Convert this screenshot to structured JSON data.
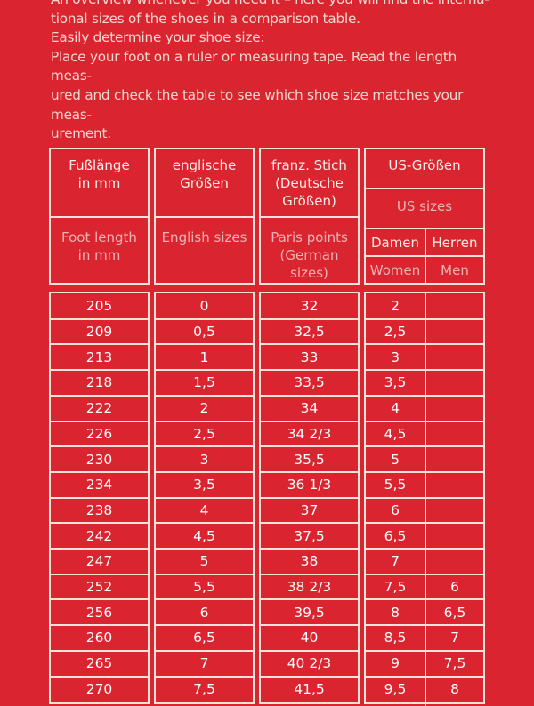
{
  "intro": {
    "lines": [
      "An overview whenever you need it – here you will find the interna-",
      "tional sizes of the shoes in a comparison table.",
      "Easily determine your shoe size:",
      "Place your foot on a ruler or measuring tape. Read the length meas-",
      "ured and check the table to see which shoe size matches your meas-",
      "urement."
    ]
  },
  "table": {
    "headers": {
      "foot_length": {
        "de": "Fußlänge\nin mm",
        "en": "Foot length\nin mm"
      },
      "english": {
        "de": "englische\nGrößen",
        "en": "English sizes"
      },
      "french": {
        "de": "franz. Stich\n(Deutsche\nGrößen)",
        "en": "Paris points\n(German sizes)"
      },
      "us": {
        "de": "US-Größen",
        "en": "US sizes",
        "women_de": "Damen",
        "men_de": "Herren",
        "women_en": "Women",
        "men_en": "Men"
      }
    },
    "rows": [
      [
        "205",
        "0",
        "32",
        "2",
        ""
      ],
      [
        "209",
        "0,5",
        "32,5",
        "2,5",
        ""
      ],
      [
        "213",
        "1",
        "33",
        "3",
        ""
      ],
      [
        "218",
        "1,5",
        "33,5",
        "3,5",
        ""
      ],
      [
        "222",
        "2",
        "34",
        "4",
        ""
      ],
      [
        "226",
        "2,5",
        "34 2/3",
        "4,5",
        ""
      ],
      [
        "230",
        "3",
        "35,5",
        "5",
        ""
      ],
      [
        "234",
        "3,5",
        "36 1/3",
        "5,5",
        ""
      ],
      [
        "238",
        "4",
        "37",
        "6",
        ""
      ],
      [
        "242",
        "4,5",
        "37,5",
        "6,5",
        ""
      ],
      [
        "247",
        "5",
        "38",
        "7",
        ""
      ],
      [
        "252",
        "5,5",
        "38 2/3",
        "7,5",
        "6"
      ],
      [
        "256",
        "6",
        "39,5",
        "8",
        "6,5"
      ],
      [
        "260",
        "6,5",
        "40",
        "8,5",
        "7"
      ],
      [
        "265",
        "7",
        "40 2/3",
        "9",
        "7,5"
      ],
      [
        "270",
        "7,5",
        "41,5",
        "9,5",
        "8"
      ]
    ]
  },
  "colors": {
    "background": "#da2530",
    "border": "#f6e4da",
    "english_text": "#eeb3b0"
  }
}
